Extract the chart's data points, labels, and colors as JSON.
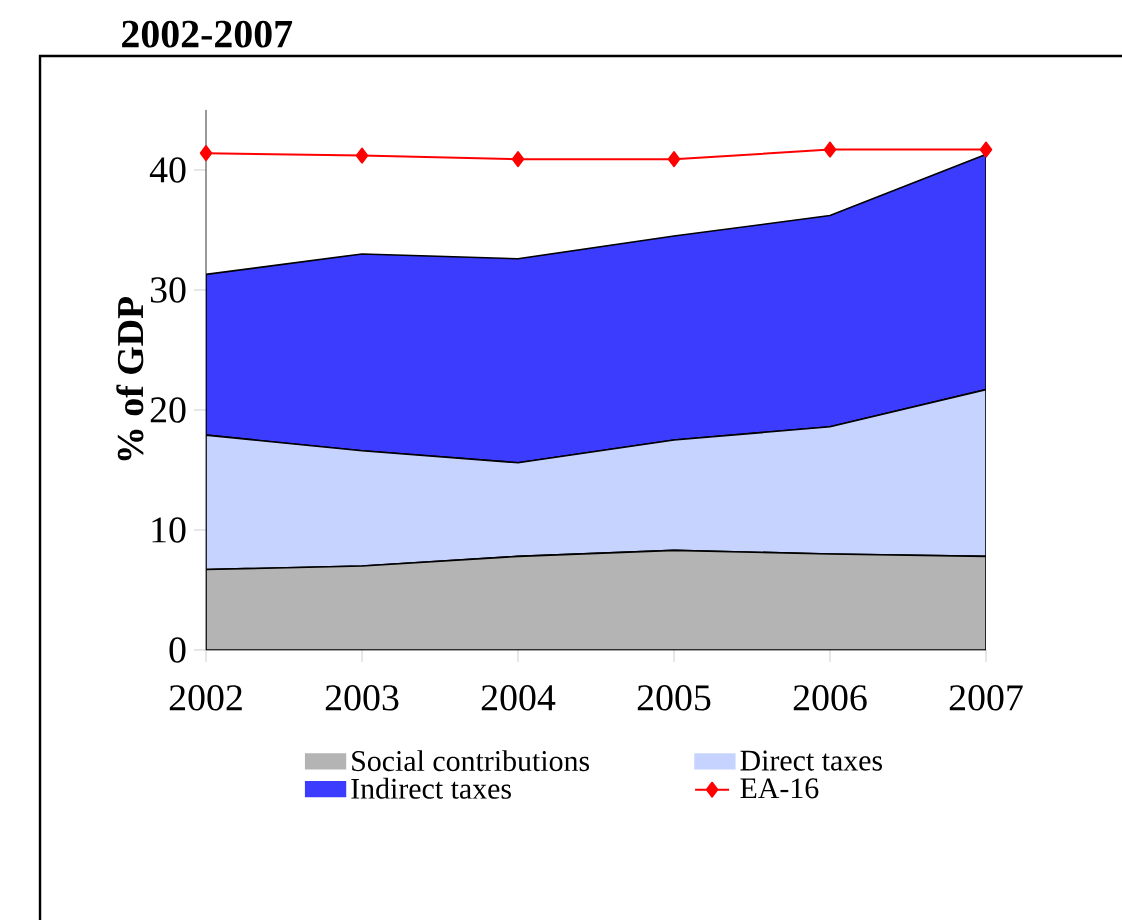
{
  "chart_data": {
    "type": "area",
    "title": "2002-2007",
    "ylabel": "% of GDP",
    "stacked": true,
    "legend": "bottom",
    "categories": [
      "2002",
      "2003",
      "2004",
      "2005",
      "2006",
      "2007"
    ],
    "ylim": [
      0,
      45
    ],
    "yticks": [
      0,
      10,
      20,
      30,
      40
    ],
    "series": [
      {
        "name": "Social contributions",
        "color": "#b4b4b4",
        "values": [
          6.7,
          7.0,
          7.8,
          8.3,
          8.0,
          7.8
        ]
      },
      {
        "name": "Direct taxes",
        "color": "#c6d3ff",
        "values": [
          11.2,
          9.6,
          7.8,
          9.2,
          10.6,
          13.9
        ]
      },
      {
        "name": "Indirect taxes",
        "color": "#3c3cff",
        "values": [
          13.4,
          16.4,
          17.0,
          17.0,
          17.6,
          19.6
        ]
      },
      {
        "name": "EA-16",
        "type": "line",
        "color": "#ff0000",
        "marker": "diamond",
        "values": [
          41.4,
          41.2,
          40.9,
          40.9,
          41.7,
          41.7
        ]
      }
    ]
  }
}
